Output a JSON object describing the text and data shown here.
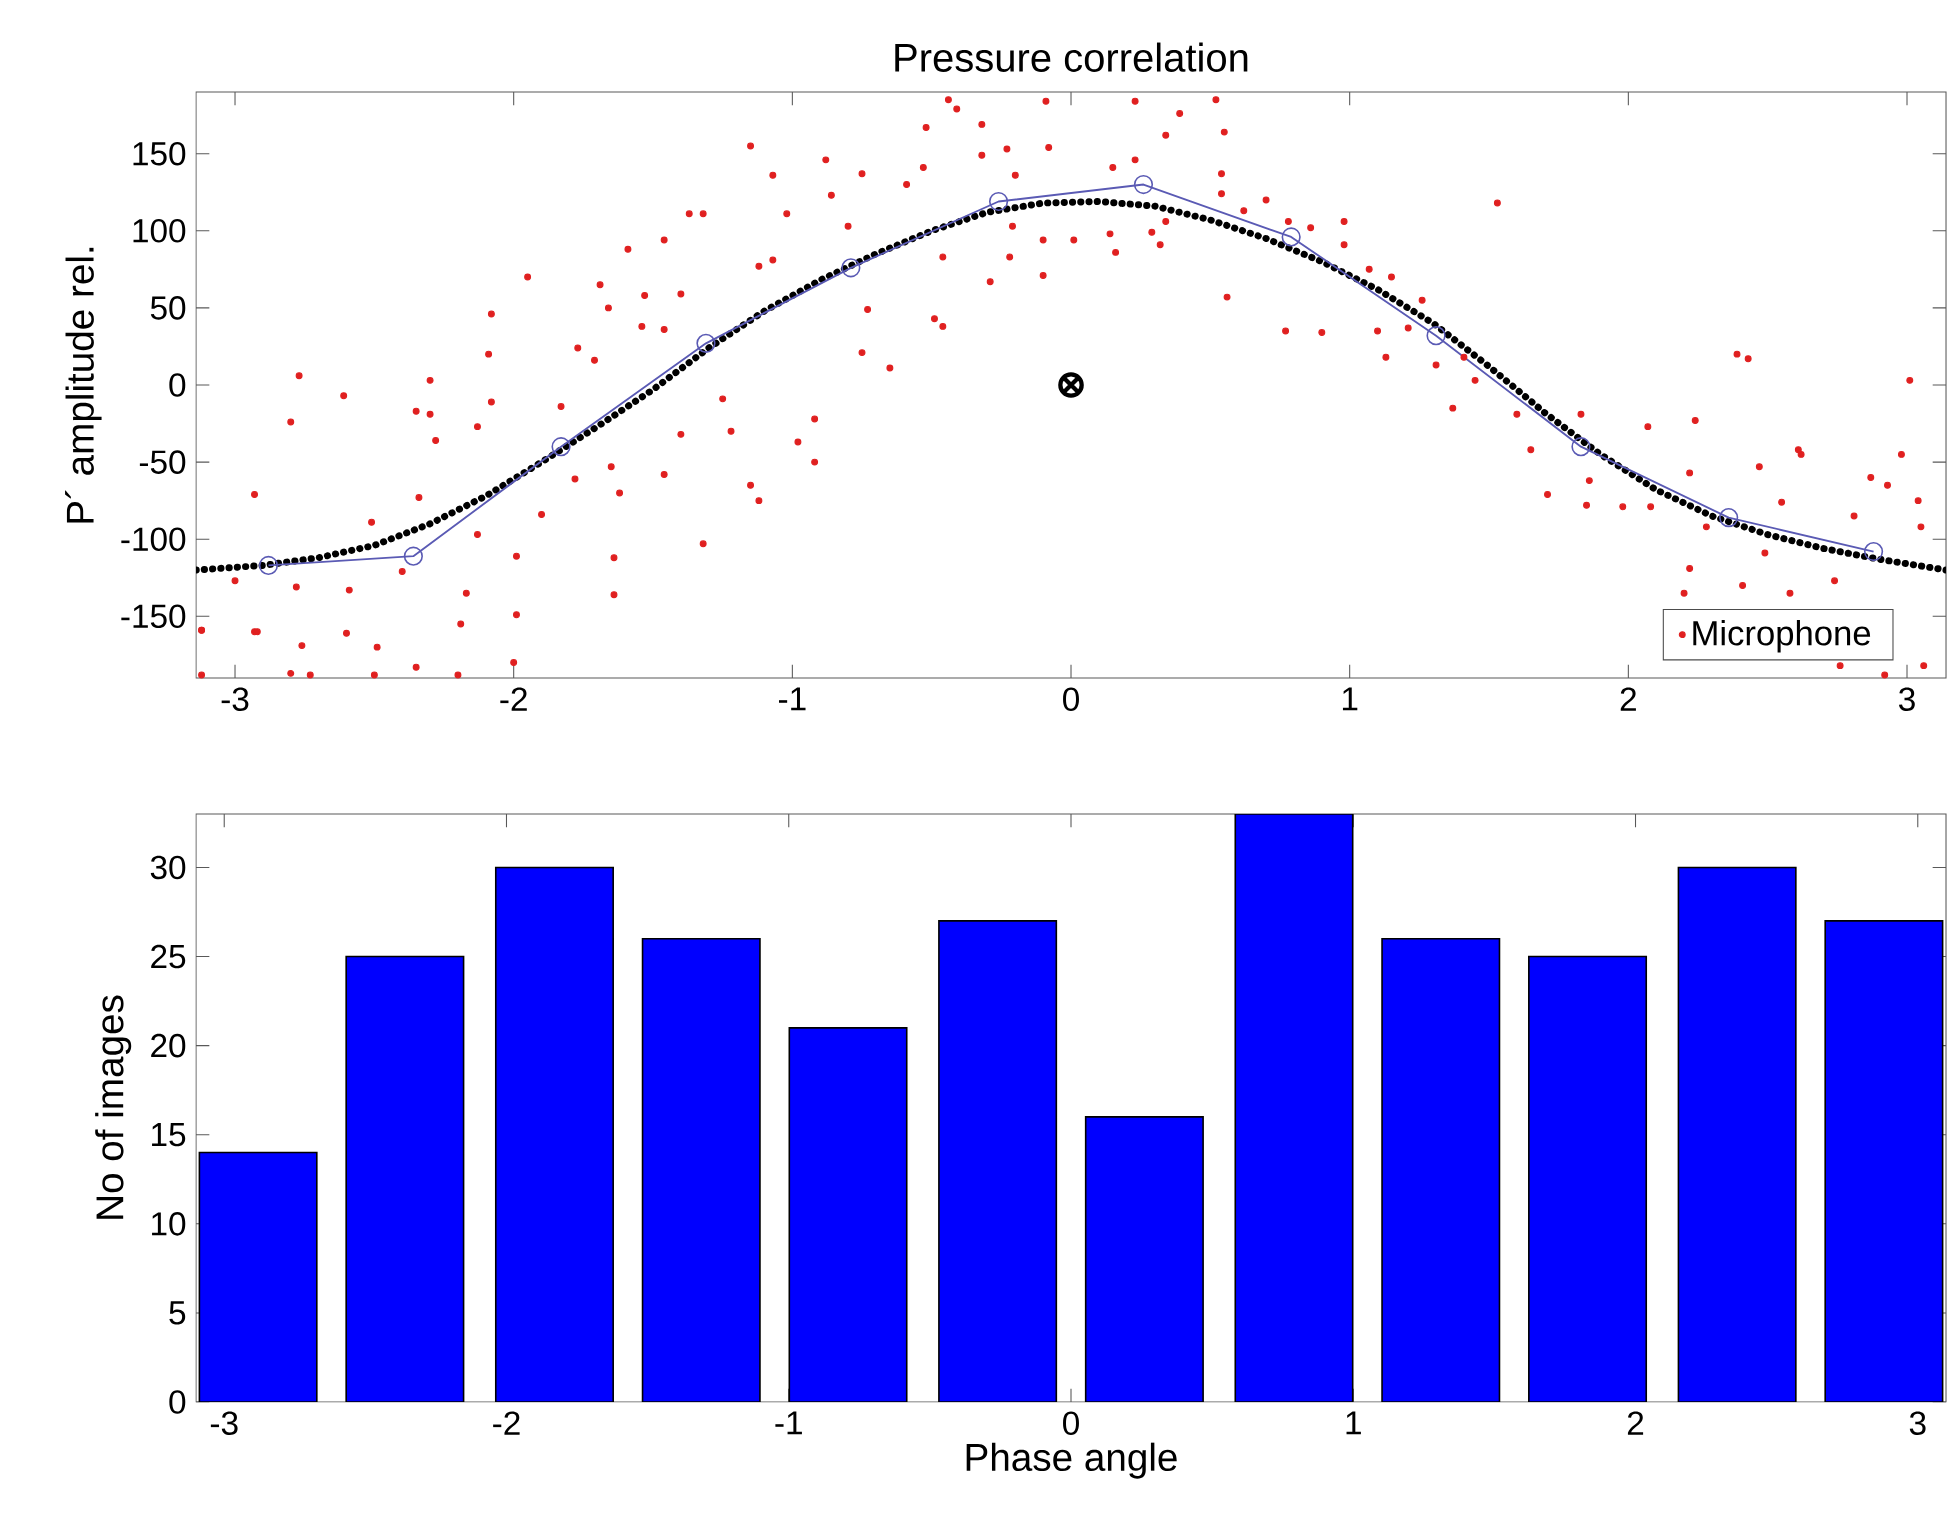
{
  "chart_data": [
    {
      "type": "scatter",
      "title": "Pressure correlation",
      "ylabel": "P´ amplitude rel.",
      "xlim": [
        -3.14,
        3.14
      ],
      "ylim": [
        -190,
        190
      ],
      "xticks": [
        -3,
        -2,
        -1,
        0,
        1,
        2,
        3
      ],
      "yticks": [
        -150,
        -100,
        -50,
        0,
        50,
        100,
        150
      ],
      "legend": "bottom right",
      "series": [
        {
          "name": "Microphone",
          "type": "scatter",
          "color": "#e02020",
          "marker": "circle",
          "x": [
            -3.12,
            -2.93,
            -2.93,
            -2.77,
            -2.8,
            -2.78,
            -3.0,
            -2.61,
            -2.59,
            -2.51,
            -2.4,
            -2.34,
            -2.3,
            -2.3,
            -2.28,
            -2.35,
            -2.17,
            -2.13,
            -2.08,
            -2.09,
            -2.08,
            -2.13,
            -1.99,
            -1.99,
            -1.95,
            -1.9,
            -1.83,
            -1.78,
            -1.77,
            -1.71,
            -1.69,
            -1.66,
            -1.59,
            -1.65,
            -1.64,
            -1.64,
            -1.62,
            -1.53,
            -1.54,
            -1.46,
            -1.46,
            -1.46,
            -1.4,
            -1.37,
            -1.32,
            -1.32,
            -1.4,
            -1.25,
            -1.22,
            -1.15,
            -1.12,
            -1.07,
            -1.15,
            -1.12,
            -1.02,
            -1.07,
            -0.98,
            -0.92,
            -0.92,
            -0.88,
            -0.86,
            -0.8,
            -0.75,
            -0.75,
            -0.73,
            -0.65,
            -0.59,
            -0.53,
            -0.52,
            -0.46,
            -0.46,
            -0.49,
            -0.44,
            -0.41,
            -0.32,
            -0.32,
            -0.29,
            -0.23,
            -0.2,
            -0.21,
            -0.22,
            -0.1,
            -0.1,
            -0.09,
            -0.08,
            0.01,
            0.15,
            0.14,
            0.16,
            0.23,
            0.23,
            0.29,
            0.34,
            0.39,
            0.34,
            0.32,
            0.52,
            0.55,
            0.54,
            0.54,
            0.56,
            0.62,
            0.7,
            0.77,
            0.78,
            0.86,
            0.9,
            0.98,
            0.98,
            1.07,
            1.1,
            1.13,
            1.15,
            1.21,
            1.26,
            1.31,
            1.37,
            1.41,
            1.45,
            1.53,
            1.6,
            1.65,
            1.71,
            1.83,
            1.86,
            1.85,
            1.98,
            2.07,
            2.08,
            2.24,
            2.22,
            2.28,
            2.22,
            2.2,
            2.39,
            2.43,
            2.41,
            2.47,
            2.49,
            2.55,
            2.58,
            2.61,
            2.62,
            2.74,
            2.81,
            2.87,
            2.93,
            2.98,
            3.01,
            3.04,
            3.05,
            -3.12,
            -2.92,
            -2.76,
            -2.6,
            -2.49,
            -2.35,
            -2.0,
            -2.8,
            -2.73,
            -2.5,
            -2.2,
            -3.12,
            -2.19,
            2.76,
            2.92,
            3.06
          ],
          "values": [
            -159,
            -71,
            -160,
            6,
            -24,
            -131,
            -127,
            -7,
            -133,
            -89,
            -121,
            -73,
            3,
            -19,
            -36,
            -17,
            -135,
            -27,
            46,
            20,
            -11,
            -97,
            -111,
            -149,
            70,
            -84,
            -14,
            -61,
            24,
            16,
            65,
            50,
            88,
            -53,
            -112,
            -136,
            -70,
            58,
            38,
            94,
            36,
            -58,
            59,
            111,
            111,
            -103,
            -32,
            -9,
            -30,
            155,
            77,
            136,
            -65,
            -75,
            111,
            81,
            -37,
            -22,
            -50,
            146,
            123,
            103,
            137,
            21,
            49,
            11,
            130,
            141,
            167,
            83,
            38,
            43,
            185,
            179,
            169,
            149,
            67,
            153,
            136,
            103,
            83,
            94,
            71,
            184,
            154,
            94,
            141,
            98,
            86,
            184,
            146,
            99,
            162,
            176,
            106,
            91,
            185,
            164,
            137,
            124,
            57,
            113,
            120,
            35,
            106,
            102,
            34,
            106,
            91,
            75,
            35,
            18,
            70,
            37,
            55,
            13,
            -15,
            18,
            3,
            118,
            -19,
            -42,
            -71,
            -19,
            -62,
            -78,
            -79,
            -27,
            -79,
            -23,
            -57,
            -92,
            -119,
            -135,
            20,
            17,
            -130,
            -53,
            -109,
            -76,
            -135,
            -42,
            -45,
            -127,
            -85,
            -60,
            -65,
            -45,
            3,
            -75,
            -92,
            -159,
            -160,
            -169,
            -161,
            -170,
            -183,
            -180,
            -187,
            -188,
            -188,
            -188,
            -188,
            -155,
            -182,
            -188,
            -182
          ]
        },
        {
          "type": "line",
          "color": "#000000",
          "marker": "none",
          "line_style": "dotted",
          "x": [
            -3.14,
            -2.9,
            -2.7,
            -2.5,
            -2.3,
            -2.1,
            -1.9,
            -1.7,
            -1.5,
            -1.3,
            -1.1,
            -0.9,
            -0.7,
            -0.5,
            -0.3,
            -0.1,
            0.1,
            0.3,
            0.5,
            0.7,
            0.9,
            1.1,
            1.3,
            1.5,
            1.7,
            1.9,
            2.1,
            2.3,
            2.5,
            2.7,
            2.9,
            3.14
          ],
          "values": [
            -120,
            -117,
            -112,
            -104,
            -90,
            -72,
            -50,
            -27,
            -3,
            24,
            48,
            68,
            85,
            100,
            112,
            118,
            119,
            116,
            107,
            95,
            80,
            62,
            40,
            12,
            -18,
            -45,
            -68,
            -85,
            -97,
            -106,
            -113,
            -120
          ]
        },
        {
          "type": "line",
          "color": "#5a5ab4",
          "marker": "circle",
          "line_style": "solid",
          "x": [
            -2.88,
            -2.36,
            -1.83,
            -1.31,
            -0.79,
            -0.26,
            0.26,
            0.79,
            1.31,
            1.83,
            2.36,
            2.88
          ],
          "values": [
            -117,
            -111,
            -40,
            27,
            76,
            119,
            130,
            96,
            32,
            -40,
            -86,
            -108
          ]
        },
        {
          "type": "scatter",
          "color": "#000000",
          "marker": "cross",
          "x": [
            0
          ],
          "values": [
            0
          ]
        }
      ]
    },
    {
      "type": "bar",
      "xlabel": "Phase angle",
      "ylabel": "No of images",
      "xlim": [
        -3.1,
        3.1
      ],
      "ylim": [
        0,
        33
      ],
      "xticks": [
        -3,
        -2,
        -1,
        0,
        1,
        2,
        3
      ],
      "yticks": [
        0,
        5,
        10,
        15,
        20,
        25,
        30
      ],
      "color": "#0000ff",
      "x": [
        -2.88,
        -2.36,
        -1.83,
        -1.31,
        -0.79,
        -0.26,
        0.26,
        0.79,
        1.31,
        1.83,
        2.36,
        2.88
      ],
      "values": [
        14,
        25,
        30,
        26,
        21,
        27,
        16,
        33,
        26,
        25,
        30,
        27
      ]
    }
  ]
}
